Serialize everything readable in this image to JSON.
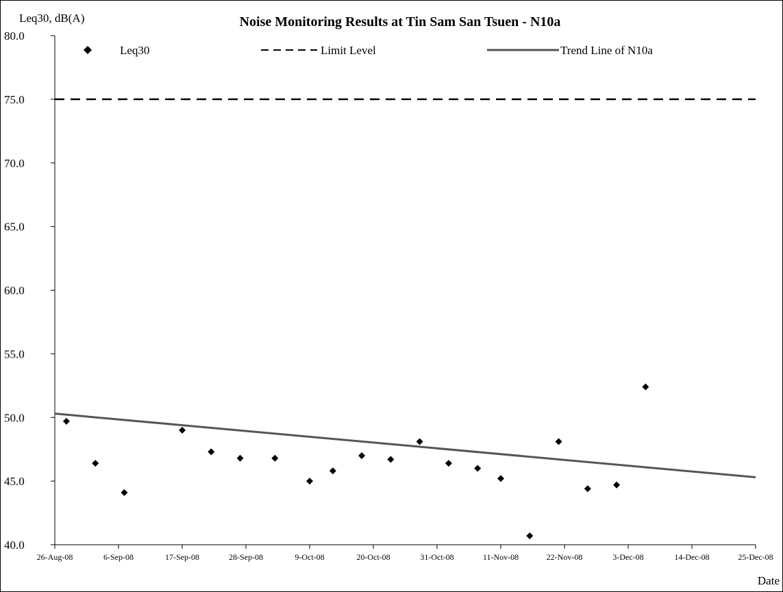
{
  "chart_data": {
    "type": "scatter",
    "title": "Noise Monitoring Results at Tin Sam San Tsuen - N10a",
    "ylabel": "Leq30, dB(A)",
    "xlabel": "Date",
    "ylim": [
      40.0,
      80.0
    ],
    "xlim": [
      "2008-08-26",
      "2008-12-25"
    ],
    "y_ticks": [
      "40.0",
      "45.0",
      "50.0",
      "55.0",
      "60.0",
      "65.0",
      "70.0",
      "75.0",
      "80.0"
    ],
    "x_ticks": [
      {
        "date": "2008-08-26",
        "label": "26-Aug-08"
      },
      {
        "date": "2008-09-06",
        "label": "6-Sep-08"
      },
      {
        "date": "2008-09-17",
        "label": "17-Sep-08"
      },
      {
        "date": "2008-09-28",
        "label": "28-Sep-08"
      },
      {
        "date": "2008-10-09",
        "label": "9-Oct-08"
      },
      {
        "date": "2008-10-20",
        "label": "20-Oct-08"
      },
      {
        "date": "2008-10-31",
        "label": "31-Oct-08"
      },
      {
        "date": "2008-11-11",
        "label": "11-Nov-08"
      },
      {
        "date": "2008-11-22",
        "label": "22-Nov-08"
      },
      {
        "date": "2008-12-03",
        "label": "3-Dec-08"
      },
      {
        "date": "2008-12-14",
        "label": "14-Dec-08"
      },
      {
        "date": "2008-12-25",
        "label": "25-Dec-08"
      }
    ],
    "grid": false,
    "legend_position": "top",
    "series": [
      {
        "name": "Leq30",
        "marker": "diamond",
        "color": "#000000",
        "points": [
          {
            "x": "2008-08-28",
            "y": 49.7
          },
          {
            "x": "2008-09-02",
            "y": 46.4
          },
          {
            "x": "2008-09-07",
            "y": 44.1
          },
          {
            "x": "2008-09-17",
            "y": 49.0
          },
          {
            "x": "2008-09-22",
            "y": 47.3
          },
          {
            "x": "2008-09-27",
            "y": 46.8
          },
          {
            "x": "2008-10-03",
            "y": 46.8
          },
          {
            "x": "2008-10-09",
            "y": 45.0
          },
          {
            "x": "2008-10-13",
            "y": 45.8
          },
          {
            "x": "2008-10-18",
            "y": 47.0
          },
          {
            "x": "2008-10-23",
            "y": 46.7
          },
          {
            "x": "2008-10-28",
            "y": 48.1
          },
          {
            "x": "2008-11-02",
            "y": 46.4
          },
          {
            "x": "2008-11-07",
            "y": 46.0
          },
          {
            "x": "2008-11-11",
            "y": 45.2
          },
          {
            "x": "2008-11-16",
            "y": 40.7
          },
          {
            "x": "2008-11-21",
            "y": 48.1
          },
          {
            "x": "2008-11-26",
            "y": 44.4
          },
          {
            "x": "2008-12-01",
            "y": 44.7
          },
          {
            "x": "2008-12-06",
            "y": 52.4
          }
        ]
      }
    ],
    "limit_line": {
      "name": "Limit Level",
      "y": 75.0,
      "style": "dashed",
      "color": "#000000"
    },
    "trend_line": {
      "name": "Trend Line of N10a",
      "start": {
        "x": "2008-08-26",
        "y": 50.3
      },
      "end": {
        "x": "2008-12-25",
        "y": 45.3
      },
      "color": "#555555"
    }
  }
}
